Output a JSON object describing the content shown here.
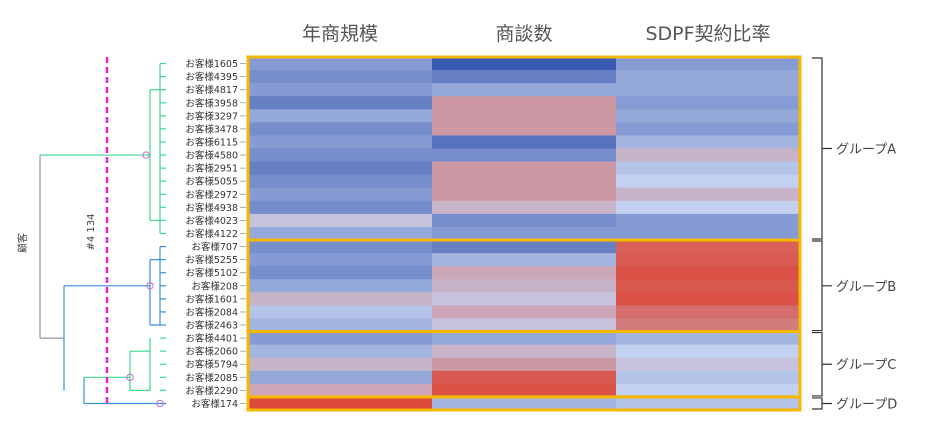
{
  "colors": {
    "low": "#2a4ba8",
    "mid": "#c3d0ef",
    "high": "#dd4432",
    "frame": "#f5b800",
    "cut_line": "#ee22cc"
  },
  "chart_data": {
    "type": "heatmap",
    "columns": [
      "年商規模",
      "商談数",
      "SDPF契約比率"
    ],
    "row_labels": [
      "お客様1605",
      "お客様4395",
      "お客様4817",
      "お客様3958",
      "お客様3297",
      "お客様3478",
      "お客様6115",
      "お客様4580",
      "お客様2951",
      "お客様5055",
      "お客様2972",
      "お客様4938",
      "お客様4023",
      "お客様4122",
      "お客様707",
      "お客様5255",
      "お客様5102",
      "お客様208",
      "お客様1601",
      "お客様2084",
      "お客様2463",
      "お客様4401",
      "お客様2060",
      "お客様5794",
      "お客様2085",
      "お客様2290",
      "お客様174"
    ],
    "values": [
      [
        0.3,
        0.05,
        0.3
      ],
      [
        0.25,
        0.2,
        0.35
      ],
      [
        0.3,
        0.35,
        0.35
      ],
      [
        0.2,
        0.7,
        0.3
      ],
      [
        0.35,
        0.7,
        0.35
      ],
      [
        0.25,
        0.7,
        0.3
      ],
      [
        0.3,
        0.15,
        0.4
      ],
      [
        0.25,
        0.25,
        0.6
      ],
      [
        0.2,
        0.7,
        0.45
      ],
      [
        0.25,
        0.7,
        0.5
      ],
      [
        0.3,
        0.7,
        0.6
      ],
      [
        0.25,
        0.6,
        0.5
      ],
      [
        0.55,
        0.25,
        0.3
      ],
      [
        0.35,
        0.3,
        0.3
      ],
      [
        0.25,
        0.2,
        0.9
      ],
      [
        0.3,
        0.4,
        0.92
      ],
      [
        0.25,
        0.65,
        0.95
      ],
      [
        0.35,
        0.6,
        0.93
      ],
      [
        0.6,
        0.55,
        0.95
      ],
      [
        0.45,
        0.65,
        0.85
      ],
      [
        0.4,
        0.55,
        0.8
      ],
      [
        0.3,
        0.35,
        0.4
      ],
      [
        0.4,
        0.6,
        0.5
      ],
      [
        0.6,
        0.7,
        0.55
      ],
      [
        0.35,
        0.92,
        0.45
      ],
      [
        0.65,
        0.95,
        0.5
      ],
      [
        0.98,
        0.4,
        0.45
      ]
    ],
    "groups": [
      {
        "name": "グループA",
        "from": 0,
        "to": 13
      },
      {
        "name": "グループB",
        "from": 14,
        "to": 20
      },
      {
        "name": "グループC",
        "from": 21,
        "to": 25
      },
      {
        "name": "グループD",
        "from": 26,
        "to": 26
      }
    ],
    "dendrogram": {
      "axis_label": "顧客",
      "cut_label": "#4 134"
    }
  }
}
